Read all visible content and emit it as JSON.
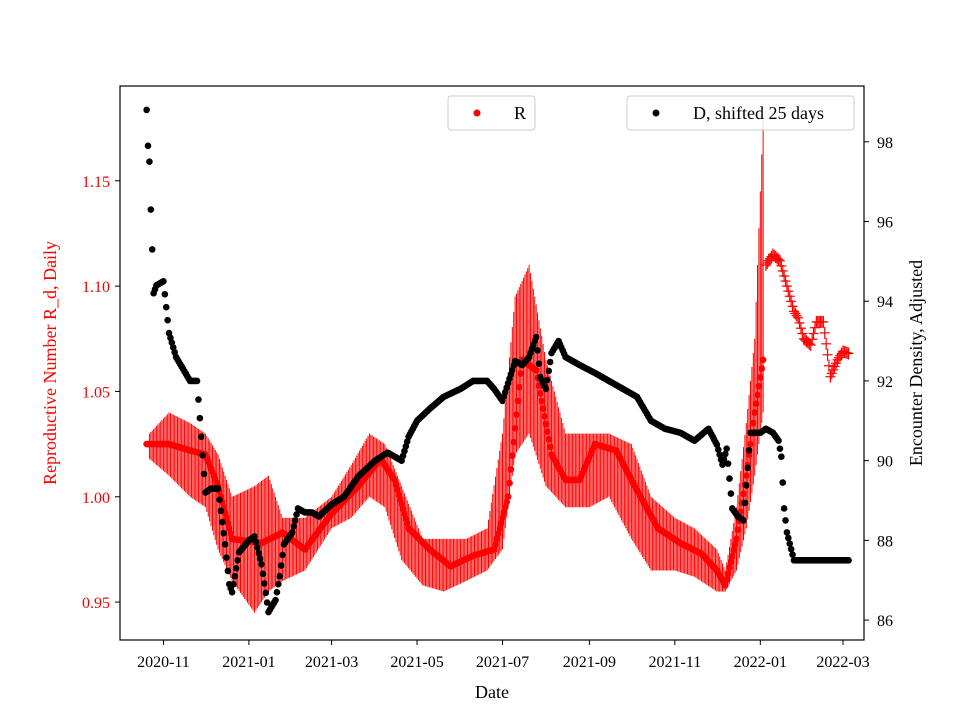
{
  "chart_data": {
    "type": "scatter",
    "xlabel": "Date",
    "y_left_label": "Reproductive Number R_d, Daily",
    "y_right_label": "Encounter Density, Adjusted",
    "x_range": [
      "2020-10-01",
      "2022-03-16"
    ],
    "x_ticks": [
      "2020-11",
      "2021-01",
      "2021-03",
      "2021-05",
      "2021-07",
      "2021-09",
      "2021-11",
      "2022-01",
      "2022-03"
    ],
    "y_left_range": [
      0.932,
      1.195
    ],
    "y_left_ticks": [
      0.95,
      1.0,
      1.05,
      1.1,
      1.15
    ],
    "y_left_tick_labels": [
      "0.95",
      "1.00",
      "1.05",
      "1.10",
      "1.15"
    ],
    "y_right_range": [
      85.5,
      99.4
    ],
    "y_right_ticks": [
      86,
      88,
      90,
      92,
      94,
      96,
      98
    ],
    "y_right_tick_labels": [
      "86",
      "88",
      "90",
      "92",
      "94",
      "96",
      "98"
    ],
    "colors": {
      "R": "#ff0000",
      "D": "#000000",
      "left_axis_text": "#ff0000",
      "right_axis_text": "#000000"
    },
    "series": [
      {
        "name": "R",
        "axis": "left",
        "marker": "circle",
        "legend_label": "R",
        "legend_position": "upper-center",
        "dates": [
          "2020-10-20",
          "2020-11-05",
          "2020-11-20",
          "2020-12-01",
          "2020-12-10",
          "2020-12-20",
          "2021-01-10",
          "2021-01-25",
          "2021-02-10",
          "2021-03-01",
          "2021-03-20",
          "2021-04-05",
          "2021-04-15",
          "2021-04-25",
          "2021-05-10",
          "2021-05-25",
          "2021-06-10",
          "2021-06-25",
          "2021-07-05",
          "2021-07-15",
          "2021-07-25",
          "2021-08-05",
          "2021-08-15",
          "2021-08-25",
          "2021-09-05",
          "2021-09-20",
          "2021-10-05",
          "2021-10-20",
          "2021-11-05",
          "2021-11-20",
          "2021-12-01",
          "2021-12-07",
          "2021-12-15",
          "2021-12-22",
          "2021-12-28",
          "2022-01-03"
        ],
        "values": [
          1.025,
          1.025,
          1.022,
          1.02,
          1.005,
          0.98,
          0.978,
          0.983,
          0.975,
          0.992,
          1.005,
          1.018,
          1.008,
          0.985,
          0.975,
          0.967,
          0.972,
          0.975,
          1.0,
          1.065,
          1.06,
          1.02,
          1.008,
          1.008,
          1.025,
          1.022,
          1.003,
          0.985,
          0.978,
          0.973,
          0.965,
          0.958,
          0.98,
          1.01,
          1.04,
          1.065
        ],
        "band_dates": [
          "2020-10-22",
          "2020-11-05",
          "2020-11-20",
          "2020-12-01",
          "2020-12-10",
          "2020-12-20",
          "2021-01-05",
          "2021-01-15",
          "2021-01-25",
          "2021-02-10",
          "2021-03-01",
          "2021-03-15",
          "2021-03-28",
          "2021-04-08",
          "2021-04-20",
          "2021-05-05",
          "2021-05-20",
          "2021-06-05",
          "2021-06-20",
          "2021-07-01",
          "2021-07-10",
          "2021-07-20",
          "2021-08-01",
          "2021-08-15",
          "2021-09-01",
          "2021-09-15",
          "2021-10-01",
          "2021-10-15",
          "2021-11-01",
          "2021-11-15",
          "2021-12-01",
          "2021-12-07",
          "2021-12-15",
          "2021-12-22",
          "2021-12-28",
          "2022-01-03"
        ],
        "band_low": [
          1.018,
          1.01,
          1.0,
          0.995,
          0.975,
          0.96,
          0.945,
          0.955,
          0.96,
          0.965,
          0.985,
          0.99,
          1.0,
          0.995,
          0.97,
          0.958,
          0.955,
          0.96,
          0.965,
          0.975,
          1.02,
          1.03,
          1.005,
          0.995,
          0.995,
          1.0,
          0.98,
          0.965,
          0.965,
          0.962,
          0.955,
          0.955,
          0.965,
          0.985,
          1.01,
          1.04
        ],
        "band_high": [
          1.03,
          1.04,
          1.035,
          1.03,
          1.02,
          1.0,
          1.005,
          1.01,
          0.99,
          0.99,
          1.0,
          1.015,
          1.03,
          1.025,
          1.005,
          0.98,
          0.98,
          0.98,
          0.985,
          1.03,
          1.095,
          1.11,
          1.065,
          1.03,
          1.03,
          1.03,
          1.025,
          1.0,
          0.99,
          0.985,
          0.975,
          0.965,
          0.995,
          1.035,
          1.075,
          1.18
        ],
        "cross_dates": [
          "2022-01-05",
          "2022-01-10",
          "2022-01-15",
          "2022-01-20",
          "2022-01-25",
          "2022-01-28",
          "2022-02-01",
          "2022-02-06",
          "2022-02-10",
          "2022-02-15",
          "2022-02-20",
          "2022-02-25",
          "2022-03-01",
          "2022-03-05"
        ],
        "cross_values": [
          1.11,
          1.115,
          1.112,
          1.1,
          1.088,
          1.085,
          1.075,
          1.072,
          1.083,
          1.083,
          1.057,
          1.065,
          1.069,
          1.068
        ]
      },
      {
        "name": "D, shifted 25 days",
        "axis": "right",
        "marker": "circle",
        "legend_label": "D, shifted 25 days",
        "legend_position": "upper-right",
        "dates": [
          "2020-10-20",
          "2020-10-21",
          "2020-10-22",
          "2020-10-23",
          "2020-10-24",
          "2020-10-25",
          "2020-10-27",
          "2020-11-01",
          "2020-11-05",
          "2020-11-10",
          "2020-11-15",
          "2020-11-20",
          "2020-11-25",
          "2020-12-01",
          "2020-12-05",
          "2020-12-10",
          "2020-12-15",
          "2020-12-18",
          "2020-12-20",
          "2020-12-25",
          "2021-01-01",
          "2021-01-05",
          "2021-01-10",
          "2021-01-15",
          "2021-01-20",
          "2021-01-23",
          "2021-01-26",
          "2021-02-01",
          "2021-02-05",
          "2021-02-10",
          "2021-02-15",
          "2021-02-20",
          "2021-03-01",
          "2021-03-10",
          "2021-03-20",
          "2021-04-01",
          "2021-04-10",
          "2021-04-20",
          "2021-04-25",
          "2021-05-01",
          "2021-05-10",
          "2021-05-20",
          "2021-06-01",
          "2021-06-10",
          "2021-06-20",
          "2021-06-25",
          "2021-07-01",
          "2021-07-10",
          "2021-07-15",
          "2021-07-20",
          "2021-07-25",
          "2021-07-28",
          "2021-08-01",
          "2021-08-05",
          "2021-08-10",
          "2021-08-15",
          "2021-08-25",
          "2021-09-05",
          "2021-09-15",
          "2021-09-25",
          "2021-10-05",
          "2021-10-15",
          "2021-10-25",
          "2021-11-05",
          "2021-11-15",
          "2021-11-25",
          "2021-12-01",
          "2021-12-05",
          "2021-12-08",
          "2021-12-12",
          "2021-12-16",
          "2021-12-20",
          "2021-12-25",
          "2022-01-01",
          "2022-01-05",
          "2022-01-10",
          "2022-01-14",
          "2022-01-16",
          "2022-01-18",
          "2022-01-20",
          "2022-01-25",
          "2022-02-01",
          "2022-02-10",
          "2022-02-20",
          "2022-03-01",
          "2022-03-05"
        ],
        "values": [
          98.8,
          97.9,
          97.5,
          96.3,
          95.3,
          94.2,
          94.4,
          94.5,
          93.2,
          92.6,
          92.3,
          92.0,
          92.0,
          89.2,
          89.3,
          89.3,
          87.9,
          86.9,
          86.7,
          87.7,
          88.0,
          88.1,
          87.4,
          86.2,
          86.5,
          87.1,
          87.9,
          88.2,
          88.8,
          88.7,
          88.7,
          88.6,
          88.9,
          89.1,
          89.6,
          90.0,
          90.2,
          90.0,
          90.6,
          91.0,
          91.3,
          91.6,
          91.8,
          92.0,
          92.0,
          91.8,
          91.5,
          92.5,
          92.4,
          92.6,
          93.1,
          92.1,
          91.8,
          92.7,
          93.0,
          92.6,
          92.4,
          92.2,
          92.0,
          91.8,
          91.6,
          91.0,
          90.8,
          90.7,
          90.5,
          90.8,
          90.4,
          89.9,
          90.3,
          88.8,
          88.6,
          88.5,
          90.7,
          90.7,
          90.8,
          90.7,
          90.5,
          90.1,
          88.8,
          88.2,
          87.5,
          87.5,
          87.5,
          87.5,
          87.5,
          87.5
        ]
      }
    ]
  }
}
